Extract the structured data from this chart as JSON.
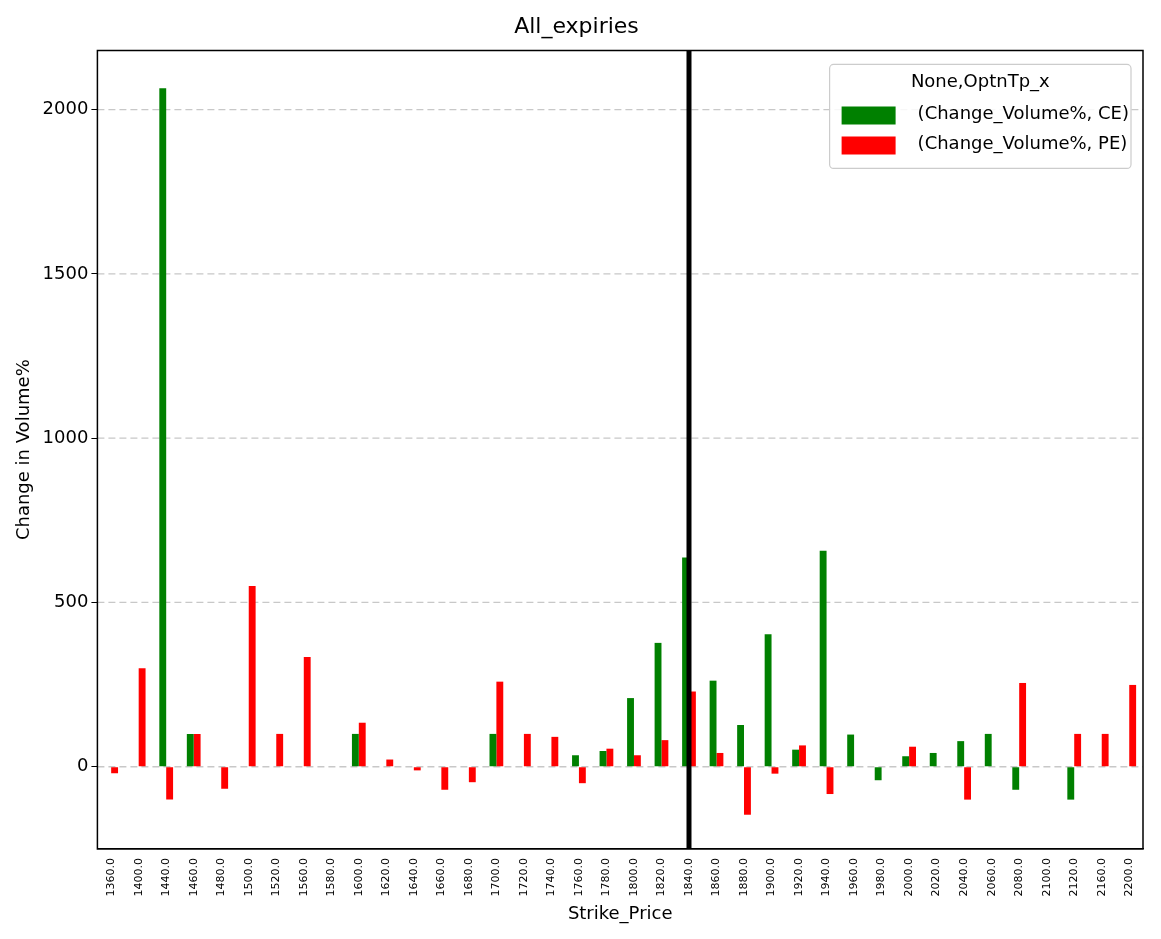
{
  "chart_data": {
    "type": "bar",
    "title": "All_expiries",
    "xlabel": "Strike_Price",
    "ylabel": "Change in Volume%",
    "legend_title": "None,OptnTp_x",
    "categories": [
      "1360.0",
      "1400.0",
      "1440.0",
      "1460.0",
      "1480.0",
      "1500.0",
      "1520.0",
      "1560.0",
      "1580.0",
      "1600.0",
      "1620.0",
      "1640.0",
      "1660.0",
      "1680.0",
      "1700.0",
      "1720.0",
      "1740.0",
      "1760.0",
      "1780.0",
      "1800.0",
      "1820.0",
      "1840.0",
      "1860.0",
      "1880.0",
      "1900.0",
      "1920.0",
      "1940.0",
      "1960.0",
      "1980.0",
      "2000.0",
      "2020.0",
      "2040.0",
      "2060.0",
      "2080.0",
      "2100.0",
      "2120.0",
      "2160.0",
      "2200.0"
    ],
    "series": [
      {
        "name": "(Change_Volume%, CE)",
        "color": "#008000",
        "values": [
          null,
          null,
          2065,
          100,
          null,
          null,
          null,
          null,
          null,
          100,
          null,
          null,
          null,
          null,
          100,
          null,
          null,
          35,
          48,
          209,
          377,
          637,
          262,
          127,
          403,
          52,
          657,
          98,
          -41,
          32,
          42,
          78,
          100,
          -70,
          null,
          -100,
          null,
          null
        ]
      },
      {
        "name": "(Change_Volume%, PE)",
        "color": "#ff0000",
        "values": [
          -20,
          300,
          -100,
          100,
          -67,
          550,
          100,
          334,
          null,
          134,
          22,
          -11,
          -70,
          -47,
          259,
          100,
          91,
          -50,
          55,
          35,
          81,
          229,
          42,
          -146,
          -21,
          65,
          -83,
          null,
          null,
          61,
          null,
          -100,
          null,
          255,
          null,
          100,
          100,
          249
        ]
      }
    ],
    "ylim": [
      -250,
      2180
    ],
    "yticks": [
      0,
      500,
      1000,
      1500,
      2000
    ],
    "grid": "y",
    "legend": "top right",
    "ref_lines": [
      {
        "axis": "x",
        "value": "1840.0",
        "color": "#000000"
      }
    ]
  }
}
